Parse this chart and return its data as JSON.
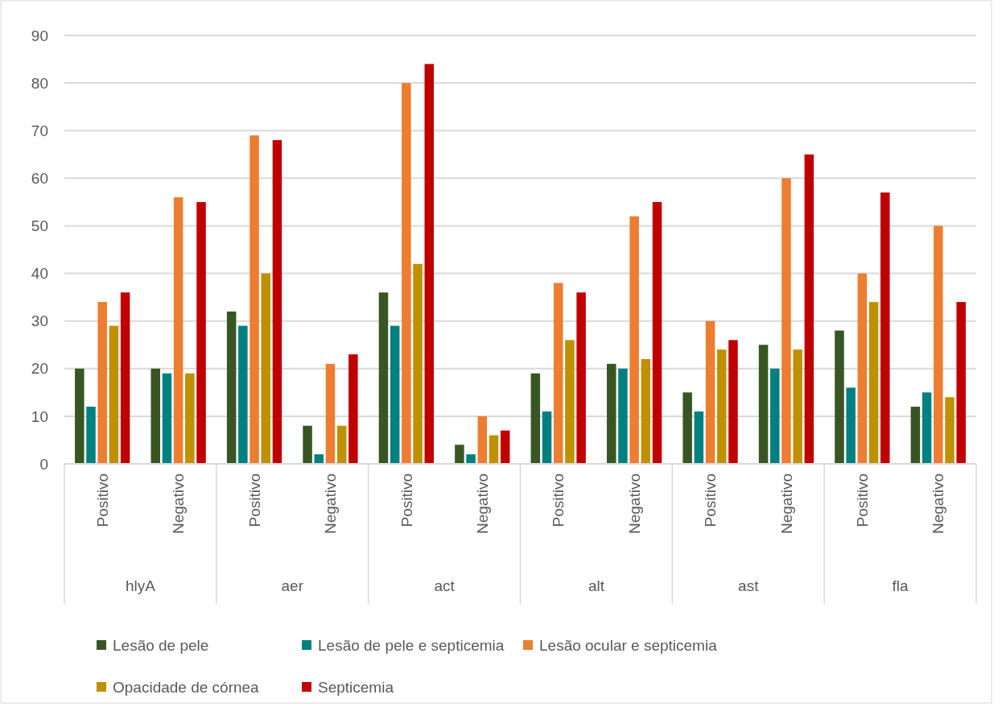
{
  "chart_data": {
    "type": "bar",
    "categories": [
      "Positivo",
      "Negativo",
      "Positivo",
      "Negativo",
      "Positivo",
      "Negativo",
      "Positivo",
      "Negativo",
      "Positivo",
      "Negativo",
      "Positivo",
      "Negativo"
    ],
    "annotations": [
      "hlyA",
      "aer",
      "act",
      "alt",
      "ast",
      "fla"
    ],
    "series": [
      {
        "name": "Lesão de pele",
        "color": "#375623",
        "values": [
          20,
          20,
          32,
          8,
          36,
          4,
          19,
          21,
          15,
          25,
          28,
          12
        ]
      },
      {
        "name": "Lesão de pele e septicemia",
        "color": "#008080",
        "values": [
          12,
          19,
          29,
          2,
          29,
          2,
          11,
          20,
          11,
          20,
          16,
          15
        ]
      },
      {
        "name": "Lesão ocular e septicemia",
        "color": "#ed7d31",
        "values": [
          34,
          56,
          69,
          21,
          80,
          10,
          38,
          52,
          30,
          60,
          40,
          50
        ]
      },
      {
        "name": "Opacidade de córnea",
        "color": "#bf9000",
        "values": [
          29,
          19,
          40,
          8,
          42,
          6,
          26,
          22,
          24,
          24,
          34,
          14
        ]
      },
      {
        "name": "Septicemia",
        "color": "#c00000",
        "values": [
          36,
          55,
          68,
          23,
          84,
          7,
          36,
          55,
          26,
          65,
          57,
          34
        ]
      }
    ],
    "ylim": [
      0,
      90
    ],
    "yticks": [
      0,
      10,
      20,
      30,
      40,
      50,
      60,
      70,
      80,
      90
    ],
    "grid": "y",
    "legend": "bottom"
  }
}
